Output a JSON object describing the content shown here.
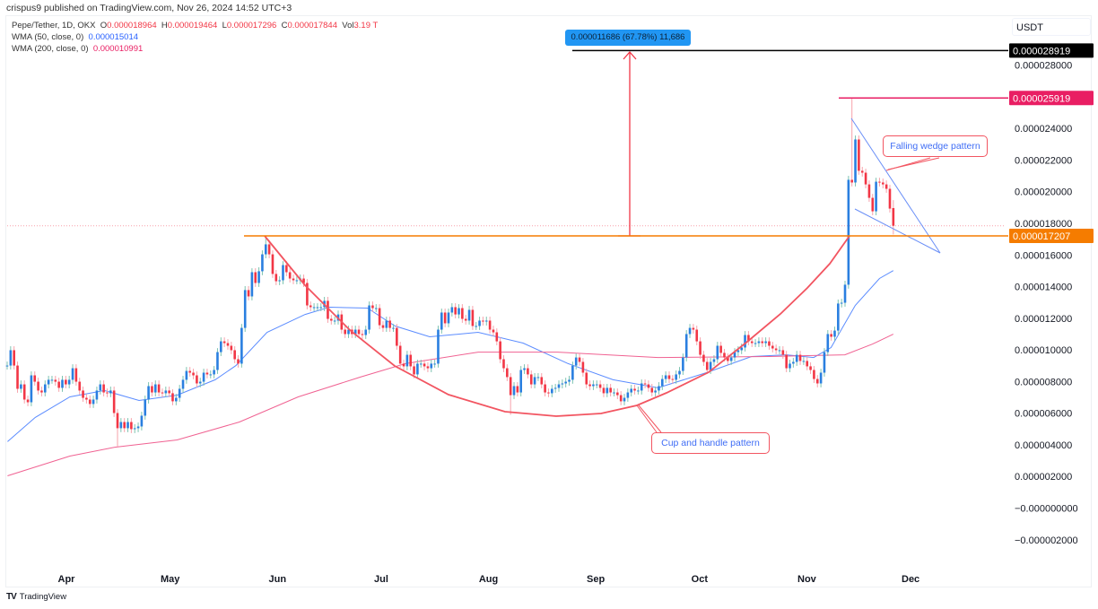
{
  "header": {
    "published": "crispus9 published on TradingView.com, Nov 26, 2024 14:52 UTC+3"
  },
  "legend": {
    "symbol": "Pepe/Tether, 1D, OKX",
    "o_label": "O",
    "o_value": "0.000018964",
    "h_label": "H",
    "h_value": "0.000019464",
    "l_label": "L",
    "l_value": "0.000017296",
    "c_label": "C",
    "c_value": "0.000017844",
    "vol_label": "Vol",
    "vol_value": "3.19 T",
    "wma50_label": "WMA (50, close, 0)",
    "wma50_value": "0.000015014",
    "wma200_label": "WMA (200, close, 0)",
    "wma200_value": "0.000010991"
  },
  "axis": {
    "currency": "USDT",
    "y_ticks": [
      {
        "value": 2.8e-05,
        "label": "0.000028000"
      },
      {
        "value": 2.4e-05,
        "label": "0.000024000"
      },
      {
        "value": 2.2e-05,
        "label": "0.000022000"
      },
      {
        "value": 2e-05,
        "label": "0.000020000"
      },
      {
        "value": 1.8e-05,
        "label": "0.000018000"
      },
      {
        "value": 1.6e-05,
        "label": "0.000016000"
      },
      {
        "value": 1.4e-05,
        "label": "0.000014000"
      },
      {
        "value": 1.2e-05,
        "label": "0.000012000"
      },
      {
        "value": 1e-05,
        "label": "0.000010000"
      },
      {
        "value": 8e-06,
        "label": "0.000008000"
      },
      {
        "value": 6e-06,
        "label": "0.000006000"
      },
      {
        "value": 4e-06,
        "label": "0.000004000"
      },
      {
        "value": 2e-06,
        "label": "0.000002000"
      },
      {
        "value": 0,
        "label": "−0.000000000"
      },
      {
        "value": -2e-06,
        "label": "−0.000002000"
      }
    ],
    "x_ticks": [
      {
        "date": "2024-04-01",
        "label": "Apr"
      },
      {
        "date": "2024-05-01",
        "label": "May"
      },
      {
        "date": "2024-06-01",
        "label": "Jun"
      },
      {
        "date": "2024-07-01",
        "label": "Jul"
      },
      {
        "date": "2024-08-01",
        "label": "Aug"
      },
      {
        "date": "2024-09-01",
        "label": "Sep"
      },
      {
        "date": "2024-10-01",
        "label": "Oct"
      },
      {
        "date": "2024-11-01",
        "label": "Nov"
      },
      {
        "date": "2024-12-01",
        "label": "Dec"
      }
    ]
  },
  "price_labels": {
    "target": {
      "value": 2.8919e-05,
      "label": "0.000028919",
      "color": "#000000"
    },
    "high": {
      "value": 2.5919e-05,
      "label": "0.000025919",
      "color": "#e91e63"
    },
    "support": {
      "value": 1.7207e-05,
      "label": "0.000017207",
      "color": "#f57c00"
    },
    "current": {
      "value": 1.7844e-05,
      "color": "#f23645"
    }
  },
  "annotations": {
    "measure": "0.000011686 (67.78%) 11,686",
    "falling_wedge": "Falling wedge pattern",
    "cup_handle": "Cup and handle pattern"
  },
  "colors": {
    "up": "#2a7fe0",
    "up_wick": "#7cc3b0",
    "down": "#f23645",
    "down_wick": "#f7a1aa",
    "wma50": "#5b8cff",
    "wma200": "#f06292",
    "cup": "#f25561",
    "wedge": "#6a8ff7",
    "measure_bg": "#2196f3"
  },
  "chart_data": {
    "type": "candlestick",
    "last_date": "2024-11-26",
    "closes": [
      9.01e-06,
      9.98e-06,
      9.01e-06,
      7.54e-06,
      7.82e-06,
      6.86e-06,
      6.69e-06,
      8.39e-06,
      7.99e-06,
      7.43e-06,
      7.31e-06,
      7.82e-06,
      8.11e-06,
      8.11e-06,
      7.99e-06,
      7.6e-06,
      8.11e-06,
      7.82e-06,
      8.11e-06,
      8.84e-06,
      7.99e-06,
      7.43e-06,
      6.97e-06,
      6.86e-06,
      6.58e-06,
      6.86e-06,
      7.43e-06,
      7.82e-06,
      7.31e-06,
      7.26e-06,
      7.43e-06,
      6.01e-06,
      5.05e-06,
      5.44e-06,
      5.05e-06,
      5.44e-06,
      4.99e-06,
      5.05e-06,
      5.16e-06,
      5.84e-06,
      6.86e-06,
      7.71e-06,
      7.31e-06,
      7.82e-06,
      7.31e-06,
      7.26e-06,
      7.43e-06,
      7.26e-06,
      6.75e-06,
      6.97e-06,
      7.54e-06,
      8.11e-06,
      8.67e-06,
      8.56e-06,
      8.39e-06,
      7.88e-06,
      7.99e-06,
      8.56e-06,
      8.45e-06,
      8.45e-06,
      8.73e-06,
      9.86e-06,
      1.054e-05,
      1.043e-05,
      1.026e-05,
      9.98e-06,
      9.41e-06,
      9.13e-06,
      1.139e-05,
      1.378e-05,
      1.338e-05,
      1.491e-05,
      1.423e-05,
      1.497e-05,
      1.604e-05,
      1.667e-05,
      1.604e-05,
      1.48e-05,
      1.434e-05,
      1.44e-05,
      1.536e-05,
      1.491e-05,
      1.451e-05,
      1.44e-05,
      1.44e-05,
      1.451e-05,
      1.423e-05,
      1.281e-05,
      1.27e-05,
      1.27e-05,
      1.27e-05,
      1.27e-05,
      1.31e-05,
      1.196e-05,
      1.185e-05,
      1.185e-05,
      1.224e-05,
      1.128e-05,
      1.1e-05,
      1.128e-05,
      1.1e-05,
      1.128e-05,
      1.1e-05,
      1.094e-05,
      1.128e-05,
      1.281e-05,
      1.264e-05,
      1.264e-05,
      1.156e-05,
      1.139e-05,
      1.185e-05,
      1.139e-05,
      1.139e-05,
      1.026e-05,
      9.13e-06,
      8.96e-06,
      9.69e-06,
      8.96e-06,
      8.45e-06,
      9.13e-06,
      9.13e-06,
      8.96e-06,
      8.84e-06,
      9.13e-06,
      9.13e-06,
      1.128e-05,
      1.236e-05,
      1.168e-05,
      1.236e-05,
      1.27e-05,
      1.224e-05,
      1.264e-05,
      1.196e-05,
      1.185e-05,
      1.253e-05,
      1.151e-05,
      1.151e-05,
      1.185e-05,
      1.179e-05,
      1.185e-05,
      1.128e-05,
      1.111e-05,
      1.054e-05,
      9.41e-06,
      8.84e-06,
      8.28e-06,
      7.14e-06,
      7.71e-06,
      7.31e-06,
      8.73e-06,
      8.84e-06,
      8.45e-06,
      7.82e-06,
      8.28e-06,
      8.28e-06,
      7.82e-06,
      7.31e-06,
      7.26e-06,
      7.54e-06,
      7.6e-06,
      7.82e-06,
      7.88e-06,
      7.99e-06,
      8.11e-06,
      9.01e-06,
      9.52e-06,
      9.24e-06,
      8.56e-06,
      7.82e-06,
      7.71e-06,
      7.82e-06,
      7.82e-06,
      7.6e-06,
      7.26e-06,
      7.6e-06,
      7.31e-06,
      7.31e-06,
      7.14e-06,
      6.75e-06,
      6.97e-06,
      7.31e-06,
      7.54e-06,
      7.43e-06,
      7.43e-06,
      7.88e-06,
      7.82e-06,
      7.6e-06,
      7.31e-06,
      7.43e-06,
      7.71e-06,
      8.16e-06,
      8.39e-06,
      8.16e-06,
      8.11e-06,
      8.45e-06,
      8.67e-06,
      9.52e-06,
      1.1e-05,
      1.139e-05,
      1.128e-05,
      1.054e-05,
      9.69e-06,
      9.24e-06,
      8.73e-06,
      9.24e-06,
      9.41e-06,
      1.026e-05,
      9.81e-06,
      9.52e-06,
      9.3e-06,
      9.52e-06,
      9.86e-06,
      9.98e-06,
      1.015e-05,
      1.094e-05,
      1.054e-05,
      1.043e-05,
      1.043e-05,
      1.054e-05,
      1.043e-05,
      1.054e-05,
      1.026e-05,
      1.009e-05,
      9.98e-06,
      9.98e-06,
      9.69e-06,
      8.84e-06,
      9.13e-06,
      9.24e-06,
      9.69e-06,
      9.3e-06,
      9.3e-06,
      8.96e-06,
      8.73e-06,
      8.16e-06,
      7.88e-06,
      8.56e-06,
      9.86e-06,
      1.1e-05,
      1.083e-05,
      1.122e-05,
      1.293e-05,
      1.298e-05,
      1.412e-05,
      2.075e-05,
      2.058e-05,
      2.33e-05,
      2.132e-05,
      2.12e-05,
      2.046e-05,
      1.961e-05,
      1.876e-05,
      2.063e-05,
      2.058e-05,
      2.046e-05,
      2.018e-05,
      1.893e-05,
      1.7844e-05
    ],
    "last_candle": {
      "open": 1.8964e-05,
      "high": 1.9464e-05,
      "low": 1.7296e-05,
      "close": 1.7844e-05
    },
    "wick_extremes": [
      {
        "index": 32,
        "low": 3.9e-06
      },
      {
        "index": 75,
        "high": 1.7207e-05
      },
      {
        "index": 146,
        "low": 5.9e-06
      },
      {
        "index": 245,
        "high": 2.5919e-05
      }
    ],
    "series": [
      {
        "name": "WMA (50, close, 0)",
        "points": [
          [
            "2024-03-15",
            4.2e-06
          ],
          [
            "2024-03-23",
            5.73e-06
          ],
          [
            "2024-04-02",
            7.03e-06
          ],
          [
            "2024-04-12",
            7.43e-06
          ],
          [
            "2024-04-22",
            6.8e-06
          ],
          [
            "2024-05-03",
            7.14e-06
          ],
          [
            "2024-05-14",
            8.11e-06
          ],
          [
            "2024-05-20",
            9.01e-06
          ],
          [
            "2024-05-29",
            1.111e-05
          ],
          [
            "2024-06-09",
            1.224e-05
          ],
          [
            "2024-06-16",
            1.27e-05
          ],
          [
            "2024-06-27",
            1.264e-05
          ],
          [
            "2024-07-05",
            1.151e-05
          ],
          [
            "2024-07-15",
            1.083e-05
          ],
          [
            "2024-07-29",
            1.111e-05
          ],
          [
            "2024-08-11",
            1.043e-05
          ],
          [
            "2024-08-24",
            9.13e-06
          ],
          [
            "2024-09-06",
            8.11e-06
          ],
          [
            "2024-09-19",
            7.6e-06
          ],
          [
            "2024-10-03",
            8.56e-06
          ],
          [
            "2024-10-16",
            9.58e-06
          ],
          [
            "2024-10-26",
            9.69e-06
          ],
          [
            "2024-11-03",
            9.52e-06
          ],
          [
            "2024-11-08",
            1.015e-05
          ],
          [
            "2024-11-15",
            1.281e-05
          ],
          [
            "2024-11-22",
            1.451e-05
          ],
          [
            "2024-11-26",
            1.5014e-05
          ]
        ]
      },
      {
        "name": "WMA (200, close, 0)",
        "points": [
          [
            "2024-03-15",
            2.04e-06
          ],
          [
            "2024-04-02",
            3.29e-06
          ],
          [
            "2024-04-15",
            3.85e-06
          ],
          [
            "2024-05-03",
            4.31e-06
          ],
          [
            "2024-05-21",
            5.44e-06
          ],
          [
            "2024-06-07",
            7.03e-06
          ],
          [
            "2024-06-25",
            8.28e-06
          ],
          [
            "2024-07-08",
            9.13e-06
          ],
          [
            "2024-07-29",
            9.86e-06
          ],
          [
            "2024-08-21",
            9.86e-06
          ],
          [
            "2024-09-19",
            9.52e-06
          ],
          [
            "2024-10-21",
            9.58e-06
          ],
          [
            "2024-11-12",
            9.69e-06
          ],
          [
            "2024-11-20",
            1.037e-05
          ],
          [
            "2024-11-26",
            1.0991e-05
          ]
        ]
      }
    ]
  }
}
